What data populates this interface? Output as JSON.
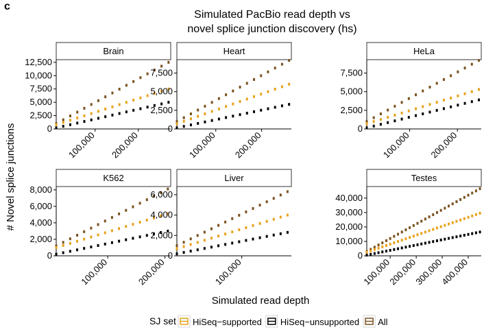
{
  "panel_tag": "c",
  "title_lines": [
    "Simulated PacBio read depth vs",
    "novel splice junction discovery (hs)"
  ],
  "xlabel": "Simulated read depth",
  "ylabel": "# Novel splice junctions",
  "legend": {
    "title": "SJ set",
    "placement": "bottom",
    "items": [
      {
        "label": "HiSeq−supported",
        "color": "#e8a21d"
      },
      {
        "label": "HiSeq−unsupported",
        "color": "#000000"
      },
      {
        "label": "All",
        "color": "#7a5220"
      }
    ]
  },
  "chart_data": {
    "type": "scatter",
    "series_colors": {
      "HiSeq-supported": "#e8a21d",
      "HiSeq-unsupported": "#000000",
      "All": "#7a5220"
    },
    "facets": [
      {
        "name": "Brain",
        "xlim": [
          10000,
          275000
        ],
        "ylim": [
          0,
          13000
        ],
        "xticks": [
          100000,
          200000
        ],
        "xtick_labels": [
          "100,000",
          "200,000"
        ],
        "yticks": [
          0,
          2500,
          5000,
          7500,
          10000,
          12500
        ],
        "ytick_labels": [
          "0",
          "2,500",
          "5,000",
          "7,500",
          "10,000",
          "12,500"
        ],
        "series": {
          "All": {
            "start": [
              10000,
              1000
            ],
            "end": [
              270000,
              12500
            ]
          },
          "HiSeq-supported": {
            "start": [
              10000,
              800
            ],
            "end": [
              270000,
              7500
            ]
          },
          "HiSeq-unsupported": {
            "start": [
              10000,
              200
            ],
            "end": [
              270000,
              5000
            ]
          }
        }
      },
      {
        "name": "Heart",
        "xlim": [
          15000,
          265000
        ],
        "ylim": [
          0,
          9300
        ],
        "xticks": [
          100000,
          200000
        ],
        "xtick_labels": [
          "100,000",
          "200,000"
        ],
        "yticks": [
          0,
          2500,
          5000,
          7500
        ],
        "ytick_labels": [
          "0",
          "2,500",
          "5,000",
          "7,500"
        ],
        "series": {
          "All": {
            "start": [
              15000,
              1000
            ],
            "end": [
              260000,
              9200
            ]
          },
          "HiSeq-supported": {
            "start": [
              15000,
              700
            ],
            "end": [
              260000,
              6000
            ]
          },
          "HiSeq-unsupported": {
            "start": [
              15000,
              150
            ],
            "end": [
              260000,
              3300
            ]
          }
        }
      },
      {
        "name": "HeLa",
        "xlim": [
          10000,
          250000
        ],
        "ylim": [
          0,
          9300
        ],
        "xticks": [
          100000,
          200000
        ],
        "xtick_labels": [
          "100,000",
          "200,000"
        ],
        "yticks": [
          0,
          2500,
          5000,
          7500
        ],
        "ytick_labels": [
          "0",
          "2,500",
          "5,000",
          "7,500"
        ],
        "series": {
          "All": {
            "start": [
              10000,
              1000
            ],
            "end": [
              245000,
              9200
            ]
          },
          "HiSeq-supported": {
            "start": [
              10000,
              700
            ],
            "end": [
              245000,
              5300
            ]
          },
          "HiSeq-unsupported": {
            "start": [
              10000,
              150
            ],
            "end": [
              245000,
              3900
            ]
          }
        }
      },
      {
        "name": "K562",
        "xlim": [
          10000,
          210000
        ],
        "ylim": [
          0,
          8400
        ],
        "xticks": [
          100000,
          200000
        ],
        "xtick_labels": [
          "100,000",
          "200,000"
        ],
        "yticks": [
          0,
          2000,
          4000,
          6000,
          8000
        ],
        "ytick_labels": [
          "0",
          "2,000",
          "4,000",
          "6,000",
          "8,000"
        ],
        "series": {
          "All": {
            "start": [
              10000,
              1200
            ],
            "end": [
              205000,
              8100
            ]
          },
          "HiSeq-supported": {
            "start": [
              10000,
              1000
            ],
            "end": [
              205000,
              5100
            ]
          },
          "HiSeq-unsupported": {
            "start": [
              10000,
              200
            ],
            "end": [
              205000,
              3000
            ]
          }
        }
      },
      {
        "name": "Liver",
        "xlim": [
          15000,
          165000
        ],
        "ylim": [
          0,
          6800
        ],
        "xticks": [
          100000
        ],
        "xtick_labels": [
          "100,000"
        ],
        "yticks": [
          0,
          2000,
          4000,
          6000
        ],
        "ytick_labels": [
          "0",
          "2,000",
          "4,000",
          "6,000"
        ],
        "series": {
          "All": {
            "start": [
              15000,
              1000
            ],
            "end": [
              160000,
              6300
            ]
          },
          "HiSeq-supported": {
            "start": [
              15000,
              700
            ],
            "end": [
              160000,
              4000
            ]
          },
          "HiSeq-unsupported": {
            "start": [
              15000,
              200
            ],
            "end": [
              160000,
              2300
            ]
          }
        }
      },
      {
        "name": "Testes",
        "xlim": [
          10000,
          450000
        ],
        "ylim": [
          0,
          48000
        ],
        "xticks": [
          100000,
          200000,
          300000,
          400000
        ],
        "xtick_labels": [
          "100,000",
          "200,000",
          "300,000",
          "400,000"
        ],
        "yticks": [
          0,
          10000,
          20000,
          30000,
          40000
        ],
        "ytick_labels": [
          "0",
          "10,000",
          "20,000",
          "30,000",
          "40,000"
        ],
        "series": {
          "All": {
            "start": [
              10000,
              3000
            ],
            "end": [
              445000,
              46500
            ]
          },
          "HiSeq-supported": {
            "start": [
              10000,
              2500
            ],
            "end": [
              445000,
              29500
            ]
          },
          "HiSeq-unsupported": {
            "start": [
              10000,
              500
            ],
            "end": [
              445000,
              16500
            ]
          }
        }
      }
    ]
  }
}
